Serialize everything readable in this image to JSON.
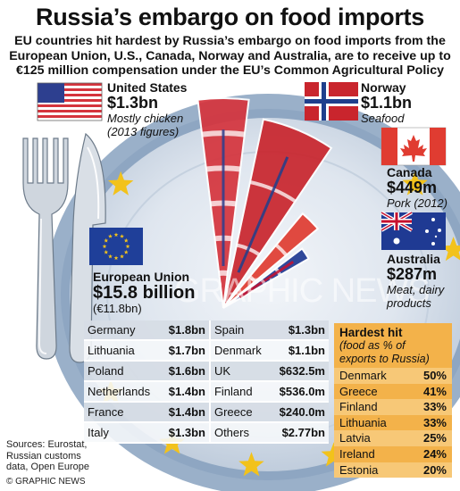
{
  "header": {
    "title": "Russia’s embargo on food imports",
    "subtitle_lines": [
      "EU countries hit hardest by Russia’s embargo on food imports from the",
      "European Union, U.S., Canada, Norway and Australia, are to receive up to",
      "€125 million compensation under the EU’s Common Agricultural Policy"
    ]
  },
  "chart_data": [
    {
      "type": "bar",
      "title": "",
      "series": [
        {
          "name": "United States",
          "value": 1.3,
          "label": "$1.3bn",
          "note_lines": [
            "Mostly chicken",
            "(2013 figures)"
          ]
        },
        {
          "name": "Norway",
          "value": 1.1,
          "label": "$1.1bn",
          "note_lines": [
            "Seafood"
          ]
        },
        {
          "name": "Canada",
          "value": 0.449,
          "label": "$449m",
          "note_lines": [
            "Pork (2012)"
          ]
        },
        {
          "name": "Australia",
          "value": 0.287,
          "label": "$287m",
          "note_lines": [
            "Meat, dairy",
            "products"
          ]
        }
      ],
      "unit": "US$ billion"
    },
    {
      "type": "table",
      "title": "European Union",
      "total": "$15.8 billion",
      "total_alt": "(€11.8bn)",
      "rows": [
        [
          "Germany",
          "$1.8bn",
          "Spain",
          "$1.3bn"
        ],
        [
          "Lithuania",
          "$1.7bn",
          "Denmark",
          "$1.1bn"
        ],
        [
          "Poland",
          "$1.6bn",
          "UK",
          "$632.5m"
        ],
        [
          "Netherlands",
          "$1.4bn",
          "Finland",
          "$536.0m"
        ],
        [
          "France",
          "$1.4bn",
          "Greece",
          "$240.0m"
        ],
        [
          "Italy",
          "$1.3bn",
          "Others",
          "$2.77bn"
        ]
      ]
    },
    {
      "type": "table",
      "title": "Hardest hit",
      "subtitle_lines": [
        "(food as % of",
        "exports to Russia)"
      ],
      "rows": [
        [
          "Denmark",
          "50%"
        ],
        [
          "Greece",
          "41%"
        ],
        [
          "Finland",
          "33%"
        ],
        [
          "Lithuania",
          "33%"
        ],
        [
          "Latvia",
          "25%"
        ],
        [
          "Ireland",
          "24%"
        ],
        [
          "Estonia",
          "20%"
        ]
      ]
    }
  ],
  "footer": {
    "source_lines": [
      "Sources: Eurostat,",
      "Russian customs",
      "data, Open Europe"
    ],
    "credit": "© GRAPHIC NEWS"
  },
  "watermark": "GRAPHIC NEWS",
  "colors": {
    "plate": "#9ab0c9",
    "plate_inner": "#c7d4e2",
    "eu_blue": "#1f3f99",
    "eu_star": "#f2c21b",
    "hardest_bg": "#f3b24a",
    "us_red": "#d5343d",
    "norway_red": "#c9252d",
    "canada_red": "#e03c31"
  }
}
